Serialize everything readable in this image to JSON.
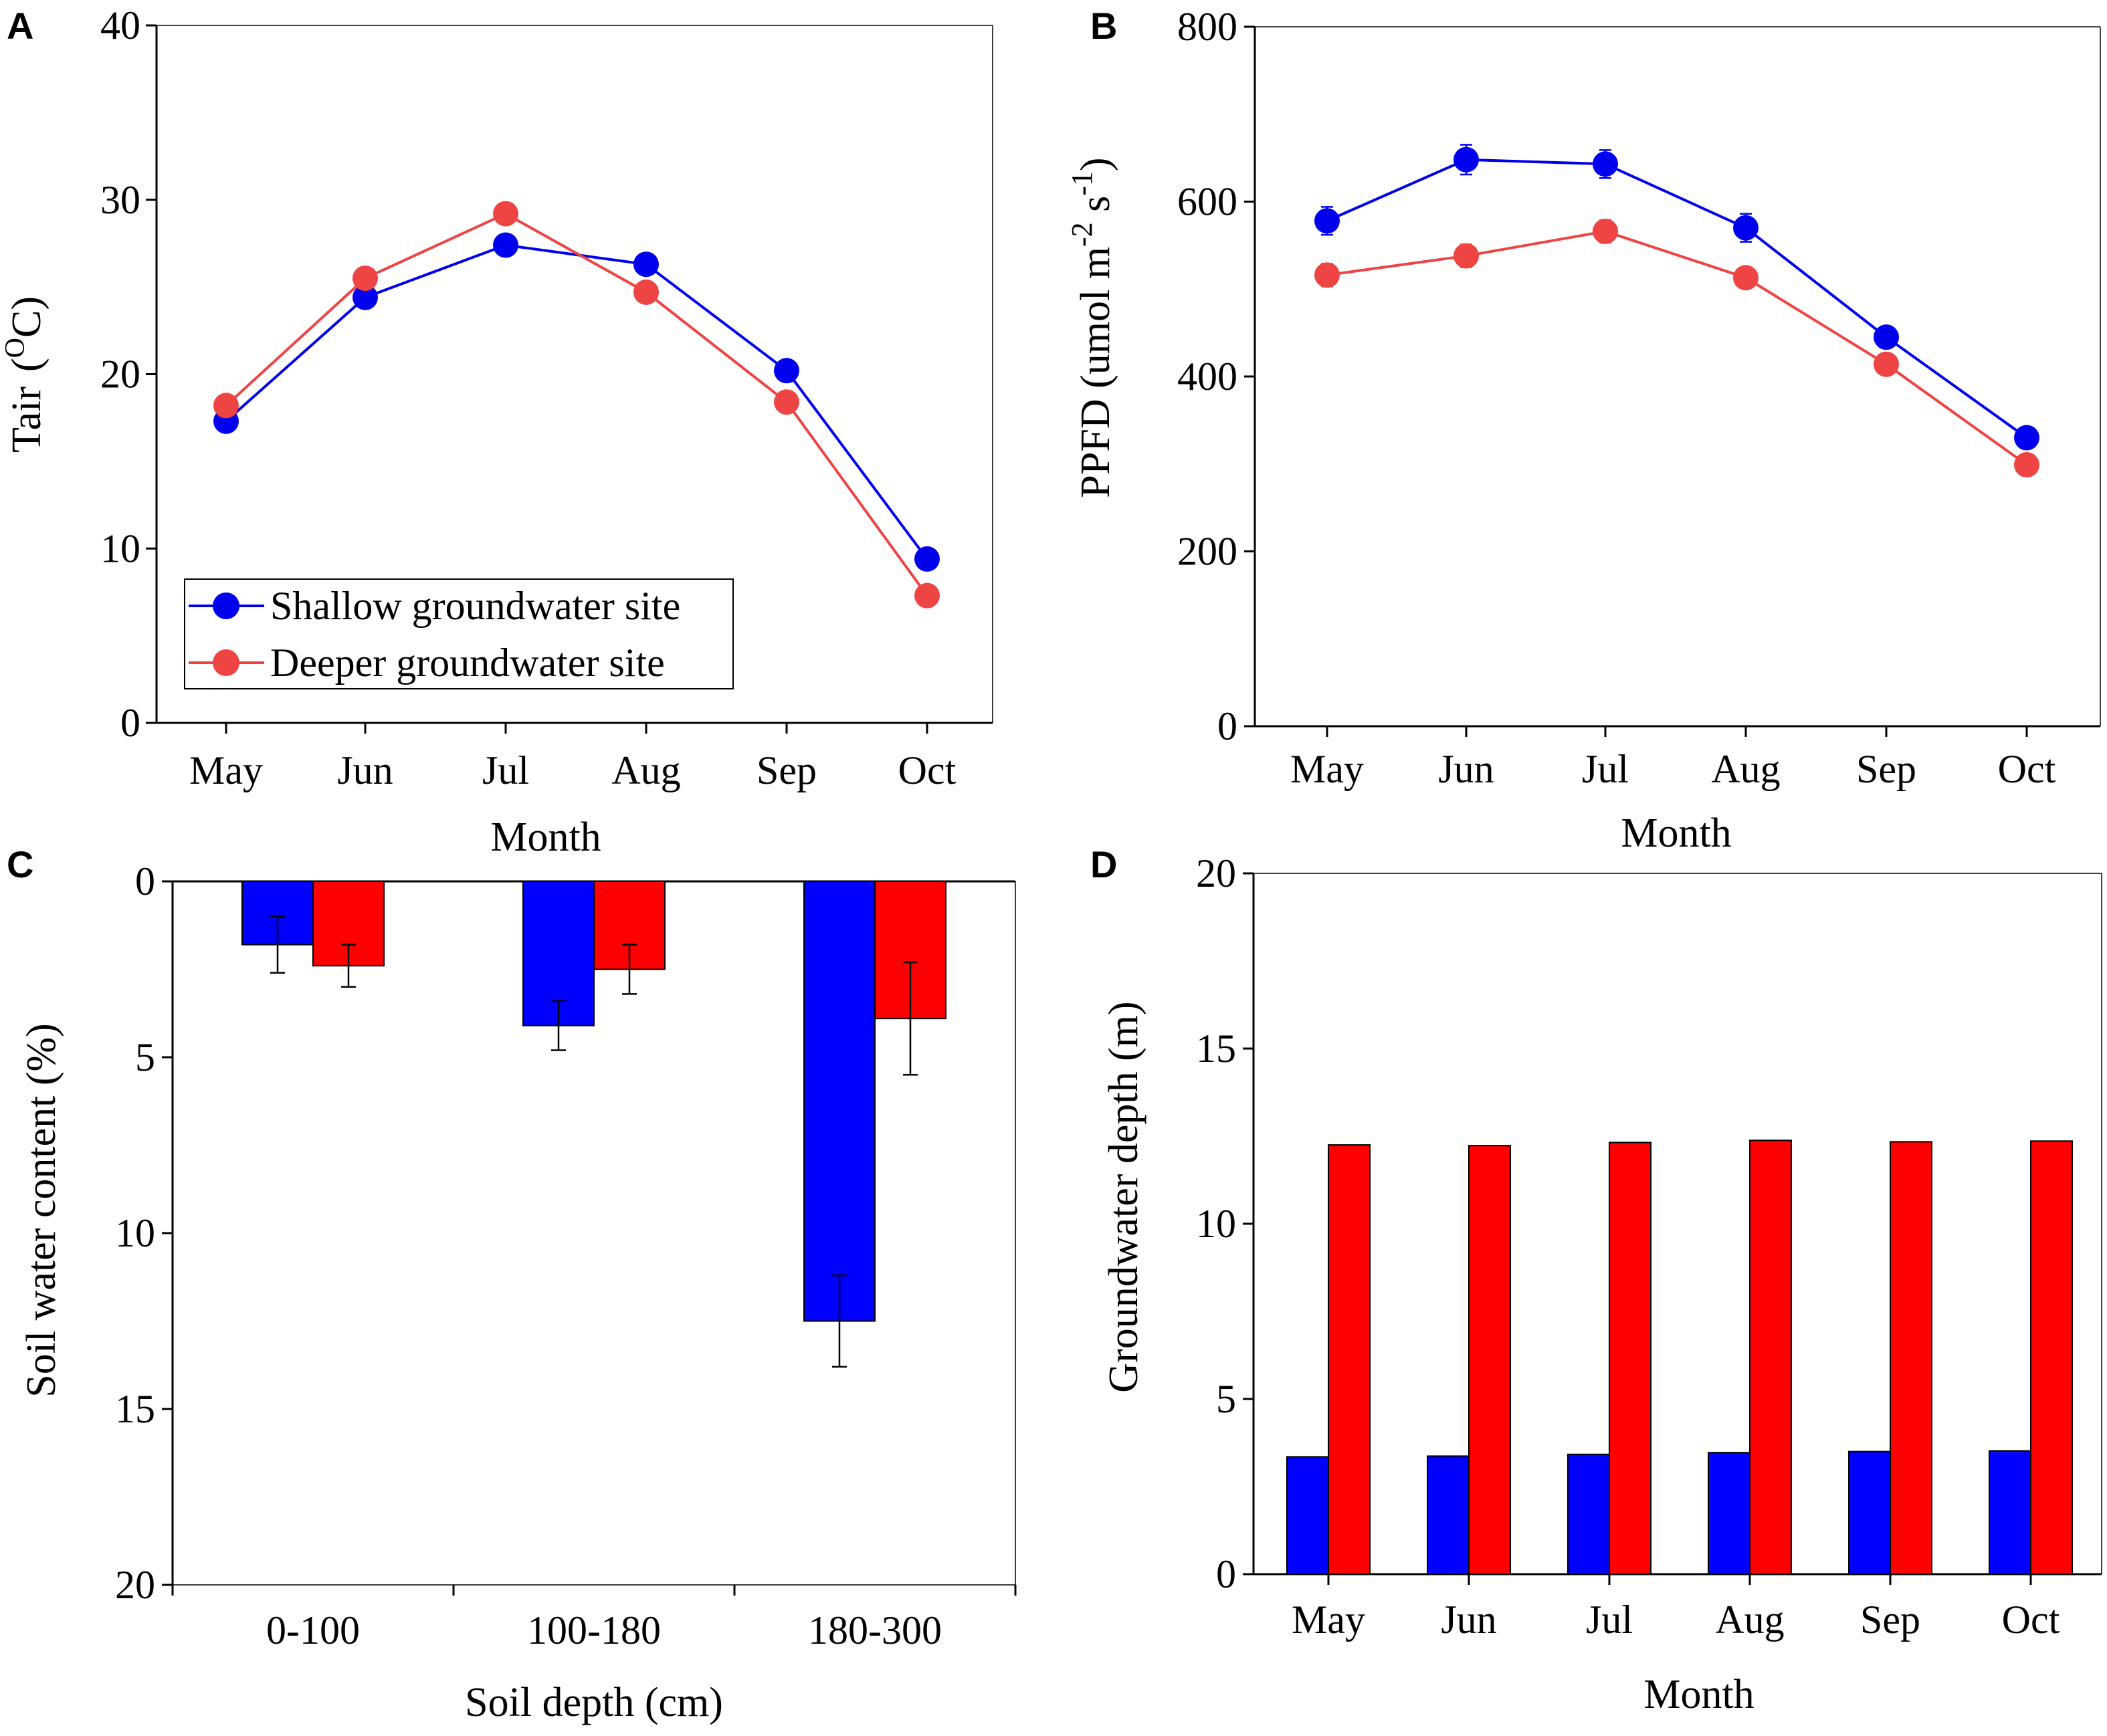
{
  "colors": {
    "shallow_line": "#0000ee",
    "deeper_line": "#ee4444",
    "shallow_bar": "#0000ff",
    "deeper_bar": "#ff0000"
  },
  "panels": {
    "A": {
      "letter": "A"
    },
    "B": {
      "letter": "B"
    },
    "C": {
      "letter": "C"
    },
    "D": {
      "letter": "D"
    }
  },
  "chart_data": [
    {
      "id": "A",
      "type": "line",
      "categories": [
        "May",
        "Jun",
        "Jul",
        "Aug",
        "Sep",
        "Oct"
      ],
      "series": [
        {
          "name": "Shallow groundwater site",
          "values": [
            17.3,
            24.4,
            27.4,
            26.3,
            20.2,
            9.4
          ]
        },
        {
          "name": "Deeper groundwater site",
          "values": [
            18.2,
            25.5,
            29.2,
            24.7,
            18.4,
            7.3
          ]
        }
      ],
      "xlabel": "Month",
      "ylabel": "Tair (ºC)",
      "ylabel_main": "Tair",
      "ylabel_unit_pre": "(",
      "ylabel_sup": "O",
      "ylabel_unit_post": "C)",
      "ylim": [
        0,
        40
      ],
      "yticks": [
        "0",
        "10",
        "20",
        "30",
        "40"
      ],
      "legend": {
        "position": "bottom-left",
        "entries": [
          "Shallow groundwater site",
          "Deeper groundwater site"
        ]
      },
      "grid": false
    },
    {
      "id": "B",
      "type": "line",
      "categories": [
        "May",
        "Jun",
        "Jul",
        "Aug",
        "Sep",
        "Oct"
      ],
      "series": [
        {
          "name": "Shallow groundwater site",
          "values": [
            578,
            648,
            643,
            570,
            445,
            330
          ],
          "errors": [
            16,
            17,
            16,
            16,
            12,
            8
          ]
        },
        {
          "name": "Deeper groundwater site",
          "values": [
            516,
            538,
            566,
            513,
            414,
            299
          ],
          "errors": [
            13,
            13,
            13,
            10,
            9,
            8
          ]
        }
      ],
      "xlabel": "Month",
      "ylabel": "PPFD (umol m-2 s-1)",
      "ylabel_main": "PPFD (umol m",
      "ylabel_sup1": "-2",
      "ylabel_mid": " s",
      "ylabel_sup2": "-1",
      "ylabel_end": ")",
      "ylim": [
        0,
        800
      ],
      "yticks": [
        "0",
        "200",
        "400",
        "600",
        "800"
      ],
      "grid": false
    },
    {
      "id": "C",
      "type": "bar",
      "categories": [
        "0-100",
        "100-180",
        "180-300"
      ],
      "series": [
        {
          "name": "Shallow groundwater site",
          "values": [
            1.8,
            4.1,
            12.5
          ],
          "errors": [
            0.8,
            0.7,
            1.3
          ]
        },
        {
          "name": "Deeper groundwater site",
          "values": [
            2.4,
            2.5,
            3.9
          ],
          "errors": [
            0.6,
            0.7,
            1.6
          ]
        }
      ],
      "xlabel": "Soil depth (cm)",
      "ylabel": "Soil water content (%)",
      "ylim": [
        0,
        20
      ],
      "y_inverted": true,
      "yticks": [
        "0",
        "5",
        "10",
        "15",
        "20"
      ],
      "grid": false
    },
    {
      "id": "D",
      "type": "bar",
      "categories": [
        "May",
        "Jun",
        "Jul",
        "Aug",
        "Sep",
        "Oct"
      ],
      "series": [
        {
          "name": "Shallow groundwater site",
          "values": [
            3.35,
            3.37,
            3.42,
            3.47,
            3.5,
            3.52
          ]
        },
        {
          "name": "Deeper groundwater site",
          "values": [
            12.25,
            12.23,
            12.32,
            12.38,
            12.34,
            12.36
          ]
        }
      ],
      "xlabel": "Month",
      "ylabel": "Groundwater depth (m)",
      "ylim": [
        0,
        20
      ],
      "yticks": [
        "0",
        "5",
        "10",
        "15",
        "20"
      ],
      "grid": false
    }
  ]
}
